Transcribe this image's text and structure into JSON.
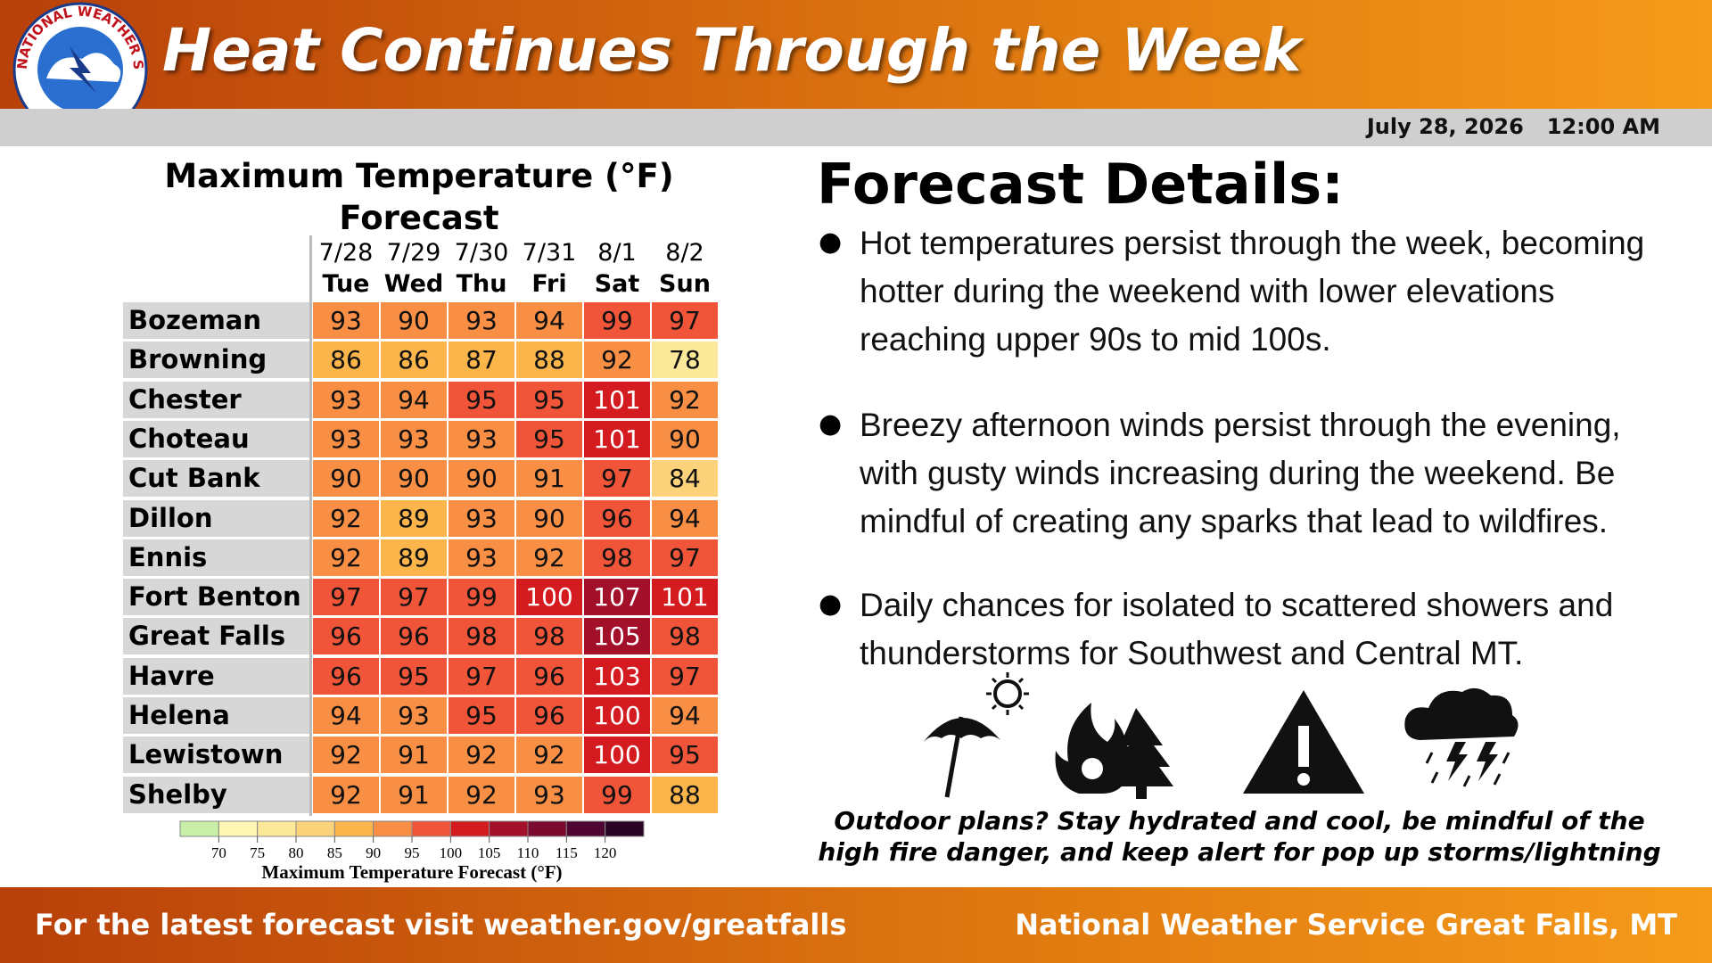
{
  "header": {
    "logo_text": "NATIONAL WEATHER SERVICE",
    "title": "Heat Continues Through the Week",
    "date": "July 28, 2026",
    "time": "12:00 AM"
  },
  "table": {
    "title": "Maximum Temperature (°F) Forecast",
    "dates": [
      "7/28",
      "7/29",
      "7/30",
      "7/31",
      "8/1",
      "8/2"
    ],
    "days": [
      "Tue",
      "Wed",
      "Thu",
      "Fri",
      "Sat",
      "Sun"
    ],
    "rows": [
      {
        "city": "Bozeman",
        "values": [
          93,
          90,
          93,
          94,
          99,
          97
        ]
      },
      {
        "city": "Browning",
        "values": [
          86,
          86,
          87,
          88,
          92,
          78
        ]
      },
      {
        "city": "Chester",
        "values": [
          93,
          94,
          95,
          95,
          101,
          92
        ]
      },
      {
        "city": "Choteau",
        "values": [
          93,
          93,
          93,
          95,
          101,
          90
        ]
      },
      {
        "city": "Cut Bank",
        "values": [
          90,
          90,
          90,
          91,
          97,
          84
        ]
      },
      {
        "city": "Dillon",
        "values": [
          92,
          89,
          93,
          90,
          96,
          94
        ]
      },
      {
        "city": "Ennis",
        "values": [
          92,
          89,
          93,
          92,
          98,
          97
        ]
      },
      {
        "city": "Fort Benton",
        "values": [
          97,
          97,
          99,
          100,
          107,
          101
        ]
      },
      {
        "city": "Great Falls",
        "values": [
          96,
          96,
          98,
          98,
          105,
          98
        ]
      },
      {
        "city": "Havre",
        "values": [
          96,
          95,
          97,
          96,
          103,
          97
        ]
      },
      {
        "city": "Helena",
        "values": [
          94,
          93,
          95,
          96,
          100,
          94
        ]
      },
      {
        "city": "Lewistown",
        "values": [
          92,
          91,
          92,
          92,
          100,
          95
        ]
      },
      {
        "city": "Shelby",
        "values": [
          92,
          91,
          92,
          93,
          99,
          88
        ]
      }
    ]
  },
  "legend": {
    "ticks": [
      70,
      75,
      80,
      85,
      90,
      95,
      100,
      105,
      110,
      115,
      120
    ],
    "colors": [
      "#c9efa6",
      "#fff7b4",
      "#fde99a",
      "#fcd27a",
      "#fbb54a",
      "#f98e45",
      "#f0553a",
      "#d31b20",
      "#a3102a",
      "#7a0a2e",
      "#4f0633",
      "#2a0424"
    ],
    "title": "Maximum Temperature Forecast (°F)"
  },
  "details": {
    "title": "Forecast Details:",
    "bullets": [
      "Hot temperatures persist through the week, becoming hotter during the weekend with lower elevations reaching upper 90s to mid 100s.",
      "Breezy afternoon winds persist through the evening, with gusty winds increasing during the weekend. Be mindful of creating any sparks that lead to wildfires.",
      "Daily chances for isolated to scattered showers and thunderstorms for Southwest and Central MT."
    ],
    "note": "Outdoor plans? Stay hydrated and cool, be mindful of the high fire danger, and keep alert for pop up storms/lightning"
  },
  "footer": {
    "left": "For the latest forecast visit weather.gov/greatfalls",
    "right": "National Weather Service Great Falls, MT"
  }
}
